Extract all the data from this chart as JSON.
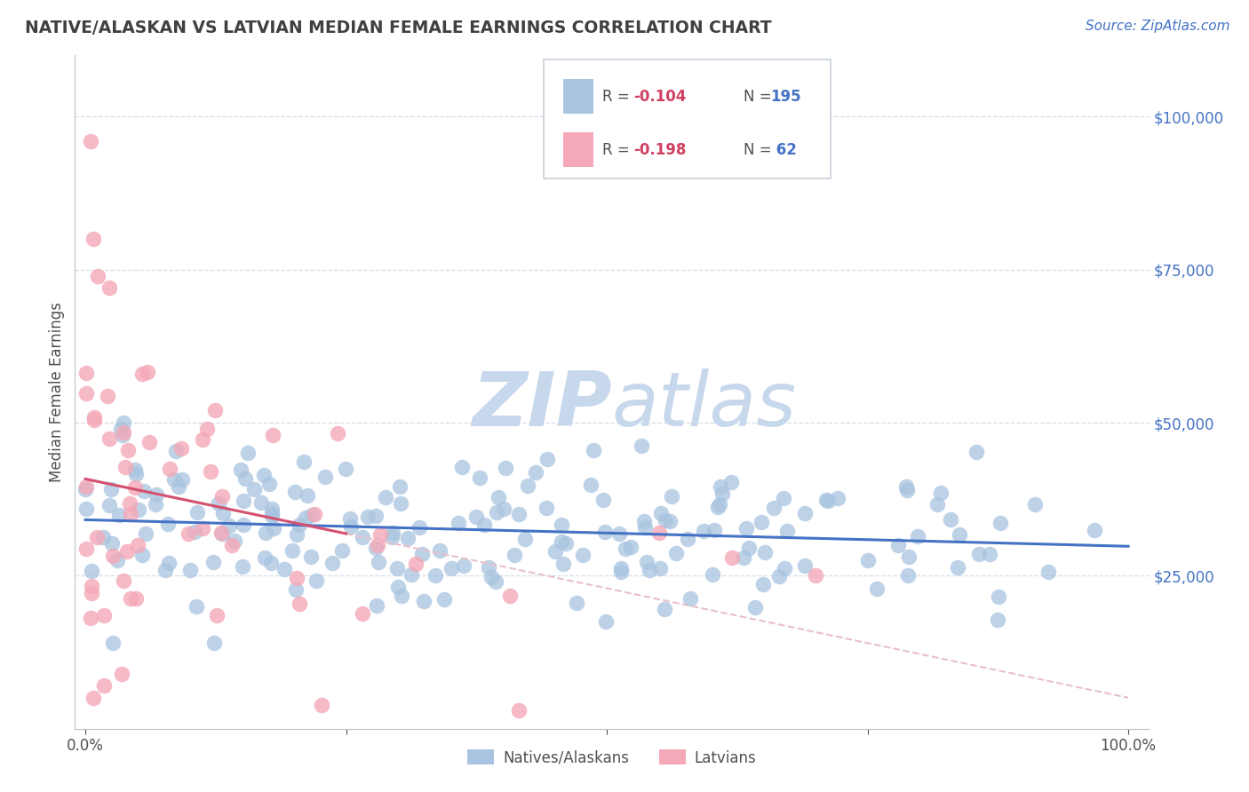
{
  "title": "NATIVE/ALASKAN VS LATVIAN MEDIAN FEMALE EARNINGS CORRELATION CHART",
  "source": "Source: ZipAtlas.com",
  "ylabel": "Median Female Earnings",
  "x_min": 0.0,
  "x_max": 1.0,
  "y_min": 0,
  "y_max": 110000,
  "x_tick_positions": [
    0.0,
    0.25,
    0.5,
    0.75,
    1.0
  ],
  "x_tick_labels": [
    "0.0%",
    "",
    "",
    "",
    "100.0%"
  ],
  "y_tick_labels": [
    "$25,000",
    "$50,000",
    "$75,000",
    "$100,000"
  ],
  "y_tick_values": [
    25000,
    50000,
    75000,
    100000
  ],
  "legend_label_blue": "Natives/Alaskans",
  "legend_label_pink": "Latvians",
  "blue_color": "#a8c4e0",
  "pink_color": "#f4a8b8",
  "blue_line_color": "#4472c4",
  "pink_line_color": "#d45070",
  "pink_dash_color": "#e8c0cc",
  "title_color": "#404040",
  "axis_label_color": "#505050",
  "legend_R_color": "#d04060",
  "legend_N_color": "#4472c4",
  "watermark_color": "#c8d8ec",
  "background_color": "#ffffff",
  "grid_color": "#d8dfe8",
  "r_blue": -0.104,
  "r_pink": -0.198,
  "n_blue": 195,
  "n_pink": 62
}
